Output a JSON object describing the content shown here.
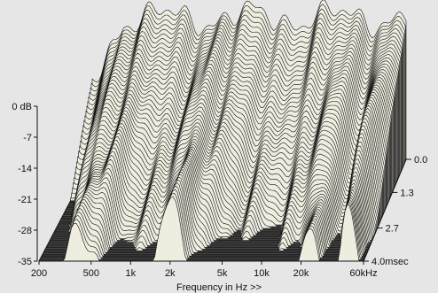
{
  "chart_data": {
    "type": "area",
    "x_axis": {
      "label": "Frequency in Hz >>",
      "scale": "log",
      "range": [
        200,
        60000
      ],
      "ticks": [
        {
          "value": 200,
          "label": "200"
        },
        {
          "value": 500,
          "label": "500"
        },
        {
          "value": 1000,
          "label": "1k"
        },
        {
          "value": 2000,
          "label": "2k"
        },
        {
          "value": 5000,
          "label": "5k"
        },
        {
          "value": 10000,
          "label": "10k"
        },
        {
          "value": 20000,
          "label": "20k"
        },
        {
          "value": 60000,
          "label": "60kHz"
        }
      ]
    },
    "y_axis": {
      "range": [
        -35,
        0
      ],
      "ticks": [
        {
          "value": 0,
          "label": "0 dB"
        },
        {
          "value": -7,
          "label": "-7"
        },
        {
          "value": -14,
          "label": "-14"
        },
        {
          "value": -21,
          "label": "-21"
        },
        {
          "value": -28,
          "label": "-28"
        },
        {
          "value": -35,
          "label": "-35"
        }
      ]
    },
    "z_axis": {
      "range": [
        0,
        4.0
      ],
      "ticks": [
        {
          "value": 0.0,
          "label": "0.0"
        },
        {
          "value": 1.3,
          "label": "1.3"
        },
        {
          "value": 2.7,
          "label": "2.7"
        },
        {
          "value": 4.0,
          "label": "4.0msec"
        }
      ]
    },
    "slice_count": 60,
    "colors": {
      "background": "#e6e6e6",
      "floor": "#3c3c3c",
      "floor_lines": "#5a5a5a",
      "surface": "#efede0",
      "outline": "#111111"
    }
  }
}
